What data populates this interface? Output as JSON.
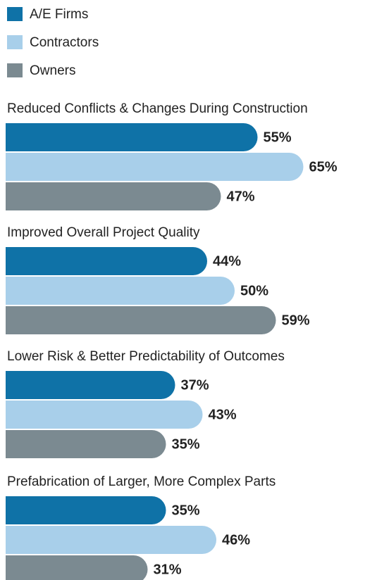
{
  "chart_data": {
    "type": "bar",
    "orientation": "horizontal",
    "categories": [
      "Reduced Conflicts & Changes During Construction",
      "Improved Overall Project Quality",
      "Lower Risk & Better Predictability of Outcomes",
      "Prefabrication of Larger, More Complex Parts"
    ],
    "series": [
      {
        "name": "A/E Firms",
        "color": "#0f72a7",
        "values": [
          55,
          44,
          37,
          35
        ],
        "value_labels": [
          "55%",
          "44%",
          "37%",
          "35%"
        ]
      },
      {
        "name": "Contractors",
        "color": "#a8cfea",
        "values": [
          65,
          50,
          43,
          46
        ],
        "value_labels": [
          "65%",
          "50%",
          "43%",
          "46%"
        ]
      },
      {
        "name": "Owners",
        "color": "#7b8a91",
        "values": [
          47,
          59,
          35,
          31
        ],
        "value_labels": [
          "47%",
          "59%",
          "35%",
          "31%"
        ]
      }
    ],
    "legend": "top-left"
  }
}
